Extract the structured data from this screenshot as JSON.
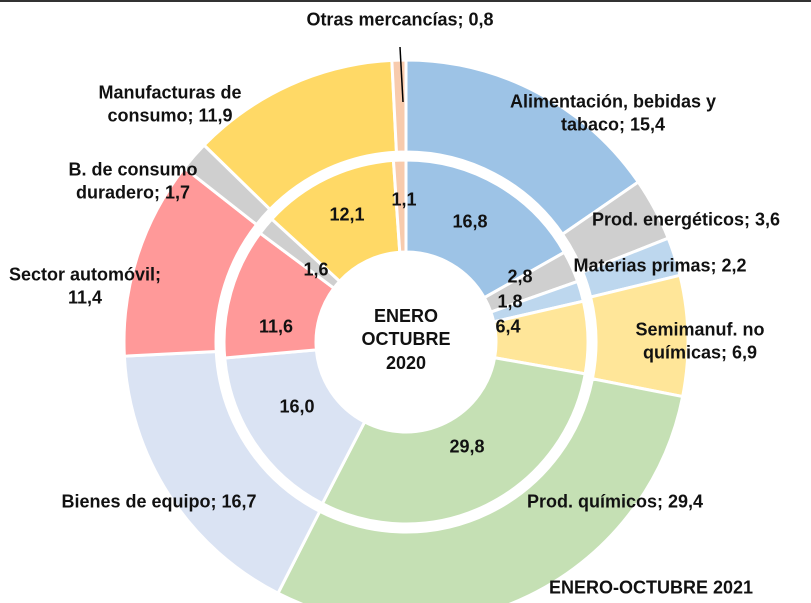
{
  "chart_data": {
    "type": "donut",
    "center_label": "ENERO\nOCTUBRE\n2020",
    "outer_label": "ENERO-OCTUBRE 2021",
    "colors": [
      "#9dc3e6",
      "#cfcfcf",
      "#bdd7ee",
      "#ffe699",
      "#c5e0b4",
      "#dae3f3",
      "#ff9999",
      "#cfcfcf",
      "#ffd966",
      "#f8cbad"
    ],
    "series": [
      {
        "name": "ENERO-OCTUBRE 2021",
        "values": [
          15.4,
          3.6,
          2.2,
          6.9,
          29.4,
          16.7,
          11.4,
          1.7,
          11.9,
          0.8
        ],
        "value_labels": [
          "Alimentación, bebidas y\ntabaco; 15,4",
          "Prod. energéticos; 3,6",
          "Materias primas; 2,2",
          "Semimanuf. no\nquímicas; 6,9",
          "Prod. químicos; 29,4",
          "Bienes de equipo; 16,7",
          "Sector automóvil;\n11,4",
          "B. de consumo\nduradero; 1,7",
          "Manufacturas de\nconsumo; 11,9",
          "Otras mercancías; 0,8"
        ]
      },
      {
        "name": "ENERO OCTUBRE 2020",
        "values": [
          16.8,
          2.8,
          1.8,
          6.4,
          29.8,
          16.0,
          11.6,
          1.6,
          12.1,
          1.1
        ],
        "value_labels": [
          "16,8",
          "2,8",
          "1,8",
          "6,4",
          "29,8",
          "16,0",
          "11,6",
          "1,6",
          "12,1",
          "1,1"
        ]
      }
    ]
  }
}
